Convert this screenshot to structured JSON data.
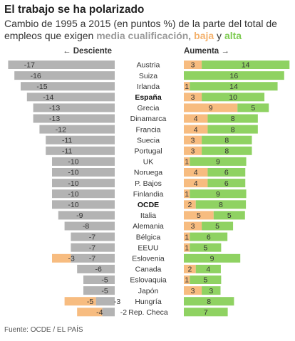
{
  "title": "El trabajo se ha polarizado",
  "subtitle": {
    "part1": "Cambio de 1995 a 2015 (en puntos %) de la parte del total de empleos que exigen ",
    "medium": "media cualificación",
    "sep": ", ",
    "low": "baja",
    "conj": " y ",
    "high": "alta"
  },
  "header_left": "← Desciente",
  "header_right": "Aumenta →",
  "source": "Fuente: OCDE / EL PAÍS",
  "colors": {
    "medium": "#b3b3b3",
    "low": "#f7bc80",
    "high": "#8fd262"
  },
  "chart_data": {
    "type": "bar",
    "categories": [
      "Austria",
      "Suiza",
      "Irlanda",
      "España",
      "Grecia",
      "Dinamarca",
      "Francia",
      "Suecia",
      "Portugal",
      "UK",
      "Noruega",
      "P. Bajos",
      "Finlandia",
      "OCDE",
      "Italia",
      "Alemania",
      "Bélgica",
      "EEUU",
      "Eslovenia",
      "Canada",
      "Eslovaquia",
      "Japón",
      "Hungría",
      "Rep. Checa"
    ],
    "bold_categories": [
      "España",
      "OCDE"
    ],
    "series": [
      {
        "name": "media cualificación",
        "values": [
          -17,
          -16,
          -15,
          -14,
          -13,
          -13,
          -12,
          -11,
          -11,
          -10,
          -10,
          -10,
          -10,
          -10,
          -9,
          -8,
          -7,
          -7,
          -7,
          -6,
          -5,
          -5,
          -3,
          -2
        ]
      },
      {
        "name": "baja",
        "values": [
          3,
          0,
          1,
          3,
          9,
          4,
          4,
          3,
          3,
          1,
          4,
          4,
          1,
          2,
          5,
          3,
          1,
          1,
          -3,
          2,
          1,
          3,
          -5,
          -4
        ]
      },
      {
        "name": "alta",
        "values": [
          14,
          16,
          14,
          10,
          5,
          8,
          8,
          8,
          8,
          9,
          6,
          6,
          9,
          8,
          5,
          5,
          6,
          5,
          9,
          4,
          5,
          3,
          8,
          7
        ]
      }
    ],
    "label_series_names": [
      "medium",
      "low",
      "high"
    ]
  }
}
